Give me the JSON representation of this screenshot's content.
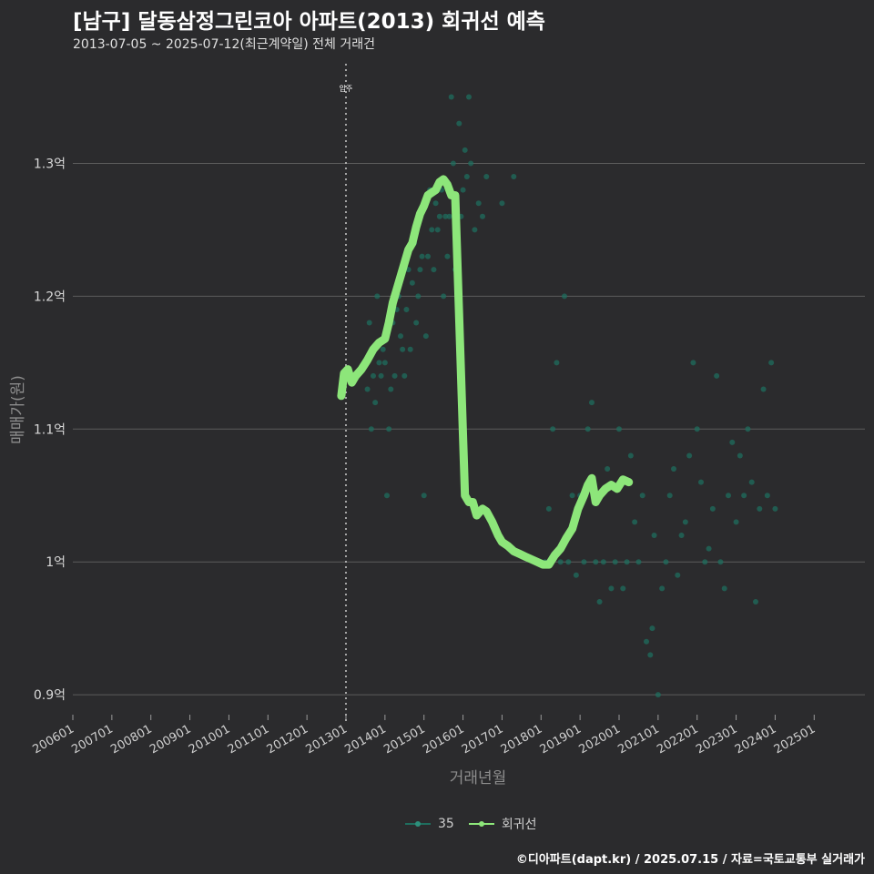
{
  "header": {
    "title": "[남구] 달동삼정그린코아 아파트(2013) 회귀선 예측",
    "subtitle": "2013-07-05 ~ 2025-07-12(최근계약일) 전체 거래건"
  },
  "footer": {
    "credit": "©디아파트(dapt.kr) / 2025.07.15 / 자료=국토교통부 실거래가"
  },
  "colors": {
    "background": "#2b2b2d",
    "grid": "#5c5c5c",
    "points": "#1f6e5e",
    "regression": "#8de67a",
    "marker_line": "#cccccc"
  },
  "chart_data": {
    "type": "scatter",
    "title": "[남구] 달동삼정그린코아 아파트(2013) 회귀선 예측",
    "xlabel": "거래년월",
    "ylabel": "매매가(원)",
    "xlim": [
      2006.0,
      2026.3
    ],
    "ylim": [
      0.885,
      1.375
    ],
    "y_ticks": [
      {
        "value": 0.9,
        "label": "0.9억"
      },
      {
        "value": 1.0,
        "label": "1억"
      },
      {
        "value": 1.1,
        "label": "1.1억"
      },
      {
        "value": 1.2,
        "label": "1.2억"
      },
      {
        "value": 1.3,
        "label": "1.3억"
      }
    ],
    "x_ticks": [
      {
        "value": 2006,
        "label": "200601"
      },
      {
        "value": 2007,
        "label": "200701"
      },
      {
        "value": 2008,
        "label": "200801"
      },
      {
        "value": 2009,
        "label": "200901"
      },
      {
        "value": 2010,
        "label": "201001"
      },
      {
        "value": 2011,
        "label": "201101"
      },
      {
        "value": 2012,
        "label": "201201"
      },
      {
        "value": 2013,
        "label": "201301"
      },
      {
        "value": 2014,
        "label": "201401"
      },
      {
        "value": 2015,
        "label": "201501"
      },
      {
        "value": 2016,
        "label": "201601"
      },
      {
        "value": 2017,
        "label": "201701"
      },
      {
        "value": 2018,
        "label": "201801"
      },
      {
        "value": 2019,
        "label": "201901"
      },
      {
        "value": 2020,
        "label": "202001"
      },
      {
        "value": 2021,
        "label": "202101"
      },
      {
        "value": 2022,
        "label": "202201"
      },
      {
        "value": 2023,
        "label": "202301"
      },
      {
        "value": 2024,
        "label": "202401"
      },
      {
        "value": 2025,
        "label": "202501"
      }
    ],
    "annotation": {
      "x": 2013.0,
      "label": "입주"
    },
    "legend": [
      {
        "name": "35",
        "color": "#1f6e5e"
      },
      {
        "name": "회귀선",
        "color": "#8de67a"
      }
    ],
    "series": [
      {
        "name": "35",
        "kind": "points",
        "points": [
          [
            2013.55,
            1.13
          ],
          [
            2013.6,
            1.18
          ],
          [
            2013.65,
            1.1
          ],
          [
            2013.7,
            1.14
          ],
          [
            2013.75,
            1.12
          ],
          [
            2013.8,
            1.2
          ],
          [
            2013.85,
            1.15
          ],
          [
            2013.9,
            1.14
          ],
          [
            2013.95,
            1.16
          ],
          [
            2014.0,
            1.15
          ],
          [
            2014.05,
            1.05
          ],
          [
            2014.1,
            1.1
          ],
          [
            2014.15,
            1.13
          ],
          [
            2014.2,
            1.18
          ],
          [
            2014.25,
            1.14
          ],
          [
            2014.3,
            1.19
          ],
          [
            2014.35,
            1.2
          ],
          [
            2014.4,
            1.17
          ],
          [
            2014.45,
            1.16
          ],
          [
            2014.5,
            1.14
          ],
          [
            2014.55,
            1.19
          ],
          [
            2014.6,
            1.22
          ],
          [
            2014.65,
            1.16
          ],
          [
            2014.7,
            1.21
          ],
          [
            2014.75,
            1.24
          ],
          [
            2014.8,
            1.18
          ],
          [
            2014.85,
            1.2
          ],
          [
            2014.9,
            1.22
          ],
          [
            2014.95,
            1.23
          ],
          [
            2015.0,
            1.05
          ],
          [
            2015.05,
            1.17
          ],
          [
            2015.1,
            1.23
          ],
          [
            2015.15,
            1.28
          ],
          [
            2015.2,
            1.25
          ],
          [
            2015.25,
            1.22
          ],
          [
            2015.3,
            1.27
          ],
          [
            2015.35,
            1.25
          ],
          [
            2015.4,
            1.26
          ],
          [
            2015.45,
            1.28
          ],
          [
            2015.5,
            1.2
          ],
          [
            2015.55,
            1.26
          ],
          [
            2015.6,
            1.23
          ],
          [
            2015.65,
            1.26
          ],
          [
            2015.7,
            1.35
          ],
          [
            2015.75,
            1.3
          ],
          [
            2015.8,
            1.22
          ],
          [
            2015.85,
            1.25
          ],
          [
            2015.9,
            1.33
          ],
          [
            2015.95,
            1.26
          ],
          [
            2016.0,
            1.28
          ],
          [
            2016.05,
            1.31
          ],
          [
            2016.1,
            1.29
          ],
          [
            2016.15,
            1.35
          ],
          [
            2016.2,
            1.3
          ],
          [
            2016.3,
            1.25
          ],
          [
            2016.4,
            1.27
          ],
          [
            2016.5,
            1.26
          ],
          [
            2016.6,
            1.29
          ],
          [
            2017.0,
            1.27
          ],
          [
            2017.3,
            1.29
          ],
          [
            2018.1,
            1.0
          ],
          [
            2018.2,
            1.04
          ],
          [
            2018.3,
            1.1
          ],
          [
            2018.4,
            1.15
          ],
          [
            2018.5,
            1.0
          ],
          [
            2018.6,
            1.2
          ],
          [
            2018.7,
            1.0
          ],
          [
            2018.8,
            1.05
          ],
          [
            2018.9,
            0.99
          ],
          [
            2019.0,
            1.05
          ],
          [
            2019.1,
            1.0
          ],
          [
            2019.2,
            1.1
          ],
          [
            2019.3,
            1.12
          ],
          [
            2019.4,
            1.0
          ],
          [
            2019.5,
            0.97
          ],
          [
            2019.6,
            1.0
          ],
          [
            2019.7,
            1.07
          ],
          [
            2019.8,
            0.98
          ],
          [
            2019.9,
            1.0
          ],
          [
            2020.0,
            1.1
          ],
          [
            2020.1,
            0.98
          ],
          [
            2020.2,
            1.0
          ],
          [
            2020.3,
            1.08
          ],
          [
            2020.4,
            1.03
          ],
          [
            2020.5,
            1.0
          ],
          [
            2020.6,
            1.05
          ],
          [
            2020.7,
            0.94
          ],
          [
            2020.8,
            0.93
          ],
          [
            2020.85,
            0.95
          ],
          [
            2020.9,
            1.02
          ],
          [
            2021.0,
            0.9
          ],
          [
            2021.1,
            0.98
          ],
          [
            2021.2,
            1.0
          ],
          [
            2021.3,
            1.05
          ],
          [
            2021.4,
            1.07
          ],
          [
            2021.5,
            0.99
          ],
          [
            2021.6,
            1.02
          ],
          [
            2021.7,
            1.03
          ],
          [
            2021.8,
            1.08
          ],
          [
            2021.9,
            1.15
          ],
          [
            2022.0,
            1.1
          ],
          [
            2022.1,
            1.06
          ],
          [
            2022.2,
            1.0
          ],
          [
            2022.3,
            1.01
          ],
          [
            2022.4,
            1.04
          ],
          [
            2022.5,
            1.14
          ],
          [
            2022.6,
            1.0
          ],
          [
            2022.7,
            0.98
          ],
          [
            2022.8,
            1.05
          ],
          [
            2022.9,
            1.09
          ],
          [
            2023.0,
            1.03
          ],
          [
            2023.1,
            1.08
          ],
          [
            2023.2,
            1.05
          ],
          [
            2023.3,
            1.1
          ],
          [
            2023.4,
            1.06
          ],
          [
            2023.5,
            0.97
          ],
          [
            2023.6,
            1.04
          ],
          [
            2023.7,
            1.13
          ],
          [
            2023.8,
            1.05
          ],
          [
            2023.9,
            1.15
          ],
          [
            2024.0,
            1.04
          ]
        ]
      },
      {
        "name": "회귀선",
        "kind": "line",
        "points": [
          [
            2012.88,
            1.125
          ],
          [
            2012.95,
            1.142
          ],
          [
            2013.05,
            1.145
          ],
          [
            2013.15,
            1.135
          ],
          [
            2013.25,
            1.14
          ],
          [
            2013.4,
            1.145
          ],
          [
            2013.55,
            1.152
          ],
          [
            2013.7,
            1.16
          ],
          [
            2013.85,
            1.165
          ],
          [
            2014.0,
            1.168
          ],
          [
            2014.1,
            1.18
          ],
          [
            2014.2,
            1.195
          ],
          [
            2014.3,
            1.205
          ],
          [
            2014.4,
            1.215
          ],
          [
            2014.5,
            1.225
          ],
          [
            2014.6,
            1.235
          ],
          [
            2014.7,
            1.24
          ],
          [
            2014.8,
            1.252
          ],
          [
            2014.9,
            1.262
          ],
          [
            2015.0,
            1.268
          ],
          [
            2015.1,
            1.276
          ],
          [
            2015.2,
            1.278
          ],
          [
            2015.3,
            1.28
          ],
          [
            2015.4,
            1.286
          ],
          [
            2015.5,
            1.288
          ],
          [
            2015.6,
            1.284
          ],
          [
            2015.7,
            1.276
          ],
          [
            2015.8,
            1.276
          ],
          [
            2016.05,
            1.05
          ],
          [
            2016.15,
            1.045
          ],
          [
            2016.25,
            1.045
          ],
          [
            2016.35,
            1.035
          ],
          [
            2016.5,
            1.04
          ],
          [
            2016.6,
            1.038
          ],
          [
            2016.75,
            1.03
          ],
          [
            2016.9,
            1.02
          ],
          [
            2017.0,
            1.015
          ],
          [
            2017.15,
            1.012
          ],
          [
            2017.3,
            1.008
          ],
          [
            2017.45,
            1.006
          ],
          [
            2017.6,
            1.004
          ],
          [
            2017.75,
            1.002
          ],
          [
            2017.9,
            1.0
          ],
          [
            2018.05,
            0.998
          ],
          [
            2018.2,
            0.998
          ],
          [
            2018.35,
            1.005
          ],
          [
            2018.5,
            1.01
          ],
          [
            2018.65,
            1.018
          ],
          [
            2018.8,
            1.025
          ],
          [
            2018.95,
            1.04
          ],
          [
            2019.1,
            1.05
          ],
          [
            2019.2,
            1.058
          ],
          [
            2019.3,
            1.063
          ],
          [
            2019.4,
            1.045
          ],
          [
            2019.5,
            1.05
          ],
          [
            2019.65,
            1.055
          ],
          [
            2019.8,
            1.058
          ],
          [
            2019.95,
            1.055
          ],
          [
            2020.1,
            1.062
          ],
          [
            2020.25,
            1.06
          ]
        ]
      }
    ]
  }
}
